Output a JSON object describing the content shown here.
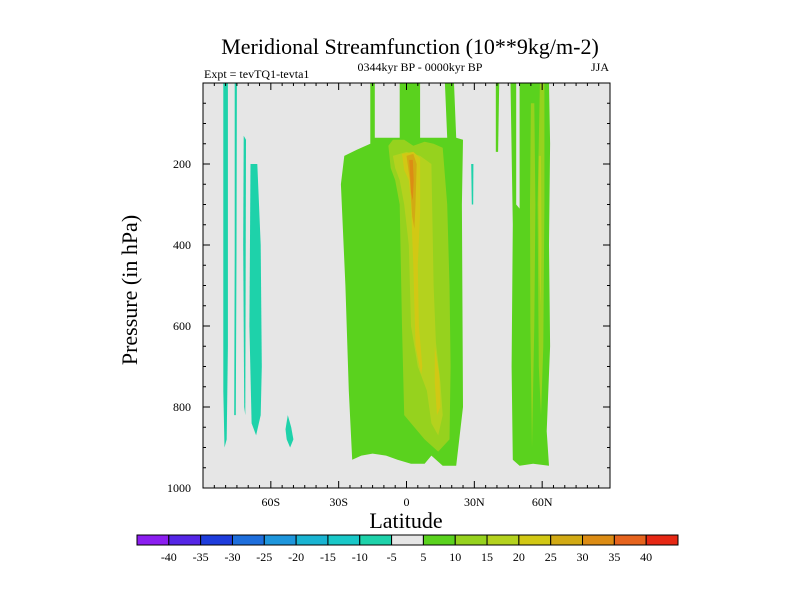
{
  "chart_data": {
    "type": "filled-contour",
    "title": "Meridional Streamfunction (10**9kg/m-2)",
    "left_string": "Expt = tevTQ1-tevta1",
    "center_string": "0344kyr BP - 0000kyr BP",
    "right_string": "JJA",
    "xlabel": "Latitude",
    "ylabel": "Pressure (in hPa)",
    "x_range": [
      -90,
      90
    ],
    "y_range": [
      0,
      1000
    ],
    "y_reversed": true,
    "x_ticks": [
      {
        "value": -60,
        "label": "60S"
      },
      {
        "value": -30,
        "label": "30S"
      },
      {
        "value": 0,
        "label": "0"
      },
      {
        "value": 30,
        "label": "30N"
      },
      {
        "value": 60,
        "label": "60N"
      }
    ],
    "y_ticks": [
      {
        "value": 200,
        "label": "200"
      },
      {
        "value": 400,
        "label": "400"
      },
      {
        "value": 600,
        "label": "600"
      },
      {
        "value": 800,
        "label": "800"
      },
      {
        "value": 1000,
        "label": "1000"
      }
    ],
    "missing_color": "#e6e6e6",
    "levels": [
      -40,
      -35,
      -30,
      -25,
      -20,
      -15,
      -10,
      -5,
      5,
      10,
      15,
      20,
      25,
      30,
      35,
      40
    ],
    "colorbar_labels": [
      "-40",
      "-35",
      "-30",
      "-25",
      "-20",
      "-15",
      "-10",
      "-5",
      "5",
      "10",
      "15",
      "20",
      "25",
      "30",
      "35",
      "40"
    ],
    "colors": [
      "#8b1ef0",
      "#5526e6",
      "#1e3cdc",
      "#1e6edc",
      "#1e96dc",
      "#19b4d2",
      "#19c8c8",
      "#1ed2aa",
      "#e6e6e6",
      "#5ad21e",
      "#96d21e",
      "#b4d21e",
      "#d2c814",
      "#d2aa14",
      "#dc8c14",
      "#e6641e",
      "#e62814"
    ],
    "regions": [
      {
        "name": "cyan-strip-far-south",
        "value": -7,
        "points": [
          [
            -81,
            0
          ],
          [
            -79,
            0
          ],
          [
            -79,
            650
          ],
          [
            -79.5,
            880
          ],
          [
            -80.5,
            900
          ],
          [
            -81,
            760
          ],
          [
            -81,
            400
          ]
        ]
      },
      {
        "name": "cyan-strip-1",
        "value": -7,
        "points": [
          [
            -76,
            0
          ],
          [
            -75,
            0
          ],
          [
            -75.2,
            420
          ],
          [
            -75.5,
            820
          ],
          [
            -76.2,
            820
          ],
          [
            -76,
            420
          ]
        ]
      },
      {
        "name": "cyan-strip-2",
        "value": -7,
        "points": [
          [
            -72,
            130
          ],
          [
            -71,
            140
          ],
          [
            -71.3,
            820
          ],
          [
            -71.8,
            800
          ],
          [
            -72.2,
            400
          ]
        ]
      },
      {
        "name": "cyan-blob-65S",
        "value": -7,
        "points": [
          [
            -69,
            200
          ],
          [
            -66,
            200
          ],
          [
            -64.5,
            400
          ],
          [
            -64,
            700
          ],
          [
            -64.5,
            820
          ],
          [
            -66.5,
            870
          ],
          [
            -68.5,
            840
          ],
          [
            -69.5,
            600
          ]
        ]
      },
      {
        "name": "cyan-blob-45S",
        "value": -7,
        "points": [
          [
            -52.5,
            820
          ],
          [
            -51,
            850
          ],
          [
            -50,
            880
          ],
          [
            -51.5,
            900
          ],
          [
            -53,
            880
          ],
          [
            -53.5,
            855
          ]
        ]
      },
      {
        "name": "cyan-speck-27N",
        "value": -7,
        "points": [
          [
            28.6,
            200
          ],
          [
            29.6,
            200
          ],
          [
            29.5,
            300
          ],
          [
            28.9,
            300
          ]
        ]
      },
      {
        "name": "green-tropics",
        "value": 7,
        "points": [
          [
            -16,
            0
          ],
          [
            -14,
            0
          ],
          [
            -14,
            135
          ],
          [
            -3,
            135
          ],
          [
            -3,
            0
          ],
          [
            6,
            0
          ],
          [
            6,
            135
          ],
          [
            18,
            135
          ],
          [
            17,
            0
          ],
          [
            21,
            0
          ],
          [
            22,
            135
          ],
          [
            25,
            140
          ],
          [
            24.5,
            300
          ],
          [
            25,
            800
          ],
          [
            22,
            945
          ],
          [
            16,
            945
          ],
          [
            11,
            920
          ],
          [
            8,
            940
          ],
          [
            2,
            940
          ],
          [
            -4,
            930
          ],
          [
            -9,
            920
          ],
          [
            -15,
            915
          ],
          [
            -20,
            920
          ],
          [
            -24,
            930
          ],
          [
            -25.5,
            760
          ],
          [
            -27,
            500
          ],
          [
            -29,
            250
          ],
          [
            -27.5,
            180
          ],
          [
            -22,
            165
          ],
          [
            -16,
            150
          ]
        ]
      },
      {
        "name": "green-north",
        "value": 7,
        "points": [
          [
            46,
            0
          ],
          [
            48.5,
            0
          ],
          [
            48.5,
            300
          ],
          [
            50,
            310
          ],
          [
            50,
            0
          ],
          [
            63,
            0
          ],
          [
            63.5,
            150
          ],
          [
            63,
            400
          ],
          [
            63.5,
            650
          ],
          [
            62,
            860
          ],
          [
            63,
            945
          ],
          [
            56,
            940
          ],
          [
            50,
            945
          ],
          [
            47,
            930
          ],
          [
            46.5,
            700
          ],
          [
            47,
            350
          ]
        ]
      },
      {
        "name": "green-spike-40N",
        "value": 7,
        "points": [
          [
            39.5,
            0
          ],
          [
            41,
            0
          ],
          [
            40.5,
            170
          ],
          [
            39.5,
            170
          ]
        ]
      },
      {
        "name": "yellowgreen-core",
        "value": 12,
        "points": [
          [
            -8,
            155
          ],
          [
            -6,
            140
          ],
          [
            -1,
            140
          ],
          [
            3,
            155
          ],
          [
            8,
            145
          ],
          [
            12,
            150
          ],
          [
            16,
            160
          ],
          [
            18,
            300
          ],
          [
            19,
            500
          ],
          [
            19.5,
            700
          ],
          [
            19,
            880
          ],
          [
            14,
            910
          ],
          [
            8,
            880
          ],
          [
            2,
            840
          ],
          [
            -1,
            820
          ],
          [
            -2,
            600
          ],
          [
            -3,
            300
          ],
          [
            -5,
            240
          ],
          [
            -7,
            210
          ]
        ]
      },
      {
        "name": "yellowgreen-north",
        "value": 12,
        "points": [
          [
            59,
            0
          ],
          [
            61,
            0
          ],
          [
            61,
            300
          ],
          [
            60.5,
            650
          ],
          [
            59.5,
            820
          ],
          [
            58.5,
            700
          ],
          [
            58,
            300
          ]
        ]
      },
      {
        "name": "yellowgreen-north-2",
        "value": 12,
        "points": [
          [
            55,
            50
          ],
          [
            56.5,
            50
          ],
          [
            57,
            300
          ],
          [
            56.5,
            600
          ],
          [
            55.5,
            900
          ],
          [
            54.8,
            600
          ],
          [
            54.6,
            300
          ]
        ]
      },
      {
        "name": "yellow-core",
        "value": 17,
        "points": [
          [
            -6,
            180
          ],
          [
            0,
            170
          ],
          [
            6,
            180
          ],
          [
            11,
            200
          ],
          [
            12,
            500
          ],
          [
            13,
            640
          ],
          [
            15,
            740
          ],
          [
            16,
            820
          ],
          [
            14,
            870
          ],
          [
            11,
            840
          ],
          [
            9,
            760
          ],
          [
            5,
            700
          ],
          [
            2,
            600
          ],
          [
            1,
            400
          ],
          [
            -1,
            300
          ],
          [
            -3,
            240
          ],
          [
            -5,
            210
          ]
        ]
      },
      {
        "name": "yellow-north",
        "value": 17,
        "points": [
          [
            58.5,
            180
          ],
          [
            59.5,
            180
          ],
          [
            59.7,
            400
          ],
          [
            59.3,
            550
          ],
          [
            58.8,
            480
          ],
          [
            58.4,
            300
          ]
        ]
      },
      {
        "name": "gold-core",
        "value": 22,
        "points": [
          [
            -2,
            175
          ],
          [
            3,
            170
          ],
          [
            6,
            185
          ],
          [
            6,
            320
          ],
          [
            5,
            450
          ],
          [
            5.5,
            600
          ],
          [
            7,
            700
          ],
          [
            6.5,
            720
          ],
          [
            4,
            650
          ],
          [
            3,
            450
          ],
          [
            2,
            300
          ],
          [
            1,
            240
          ],
          [
            -1,
            215
          ]
        ]
      },
      {
        "name": "gold-low",
        "value": 22,
        "points": [
          [
            12.5,
            650
          ],
          [
            14.5,
            720
          ],
          [
            15,
            800
          ],
          [
            13.5,
            820
          ],
          [
            12.5,
            740
          ]
        ]
      },
      {
        "name": "orange-core",
        "value": 27,
        "points": [
          [
            0,
            180
          ],
          [
            3,
            175
          ],
          [
            4.5,
            200
          ],
          [
            4,
            300
          ],
          [
            3.5,
            360
          ],
          [
            2.5,
            330
          ],
          [
            1.5,
            240
          ]
        ]
      },
      {
        "name": "darkorange-core",
        "value": 32,
        "points": [
          [
            1.2,
            190
          ],
          [
            2.8,
            190
          ],
          [
            3.2,
            240
          ],
          [
            2.8,
            290
          ],
          [
            2,
            270
          ],
          [
            1.5,
            220
          ]
        ]
      }
    ]
  }
}
